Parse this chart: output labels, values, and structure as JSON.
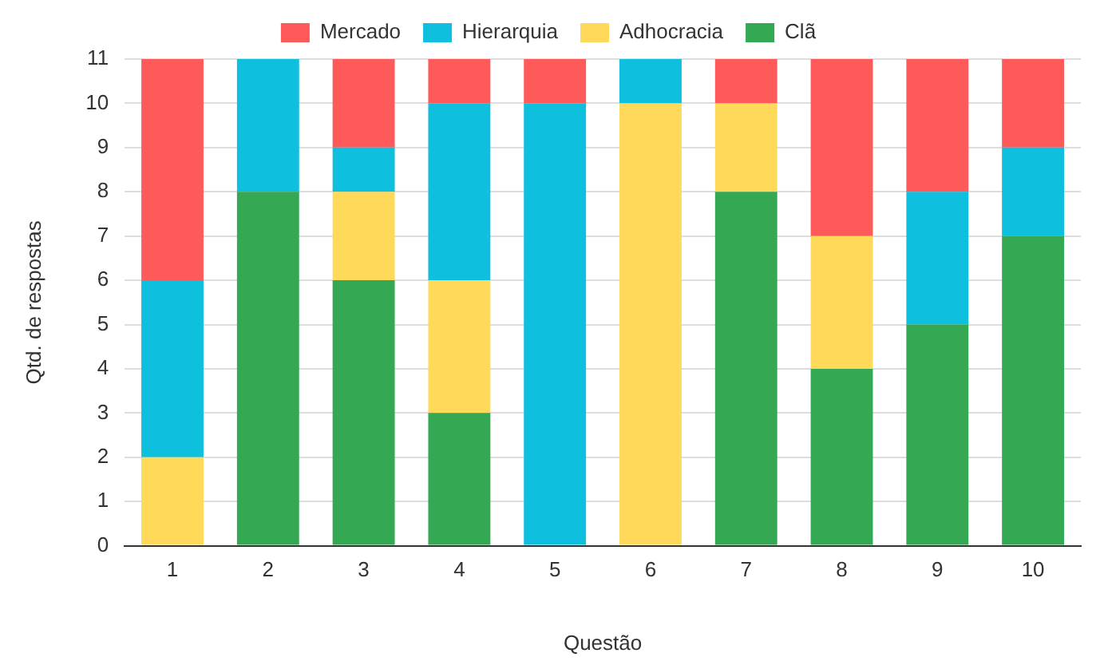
{
  "chart_data": {
    "type": "bar",
    "stacked": true,
    "xlabel": "Questão",
    "ylabel": "Qtd. de respostas",
    "categories": [
      "1",
      "2",
      "3",
      "4",
      "5",
      "6",
      "7",
      "8",
      "9",
      "10"
    ],
    "series": [
      {
        "name": "Clã",
        "color": "#34a853",
        "values": [
          0,
          8,
          6,
          3,
          0,
          0,
          8,
          4,
          5,
          7
        ]
      },
      {
        "name": "Adhocracia",
        "color": "#ffd95a",
        "values": [
          2,
          0,
          2,
          3,
          0,
          10,
          2,
          3,
          0,
          0
        ]
      },
      {
        "name": "Hierarquia",
        "color": "#0fbfde",
        "values": [
          4,
          3,
          1,
          4,
          10,
          1,
          0,
          0,
          3,
          2
        ]
      },
      {
        "name": "Mercado",
        "color": "#ff5a5a",
        "values": [
          5,
          0,
          2,
          1,
          1,
          0,
          1,
          4,
          3,
          2
        ]
      }
    ],
    "ylim": [
      0,
      11
    ],
    "yticks": [
      0,
      1,
      2,
      3,
      4,
      5,
      6,
      7,
      8,
      9,
      10,
      11
    ],
    "grid": "y",
    "legend": "top"
  }
}
